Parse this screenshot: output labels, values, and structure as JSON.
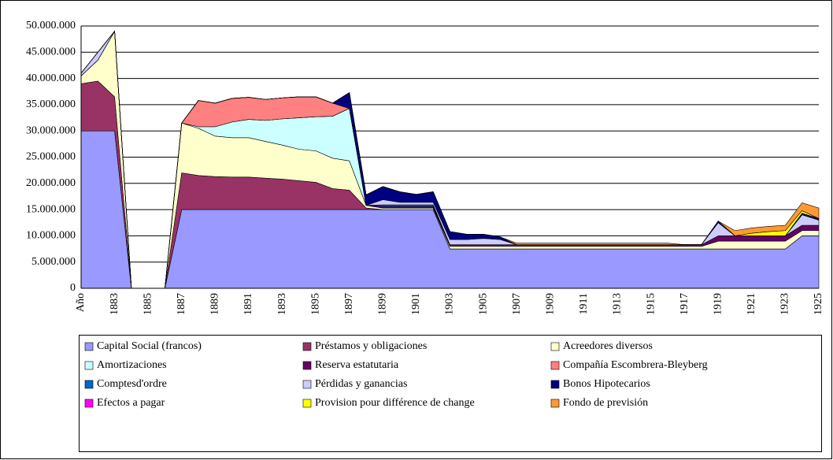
{
  "chart_data": {
    "type": "stacked-area",
    "categories": [
      "Año",
      null,
      "1883",
      null,
      "1885",
      null,
      "1887",
      null,
      "1889",
      null,
      "1891",
      null,
      "1893",
      null,
      "1895",
      null,
      "1897",
      null,
      "1899",
      null,
      "1901",
      null,
      "1903",
      null,
      "1905",
      null,
      "1907",
      null,
      "1909",
      null,
      "1911",
      null,
      "1913",
      null,
      "1915",
      null,
      "1917",
      null,
      "1919",
      null,
      "1921",
      null,
      "1923",
      null,
      "1925"
    ],
    "ylim": [
      0,
      50000000
    ],
    "yticks": [
      0,
      {
        "value": 5000000,
        "label": "5.000.000"
      },
      {
        "value": 10000000,
        "label": "10.000.000"
      },
      {
        "value": 15000000,
        "label": "15.000.000"
      },
      {
        "value": 20000000,
        "label": "20.000.000"
      },
      {
        "value": 25000000,
        "label": "25.000.000"
      },
      {
        "value": 30000000,
        "label": "30.000.000"
      },
      {
        "value": 35000000,
        "label": "35.000.000"
      },
      {
        "value": 40000000,
        "label": "40.000.000"
      },
      {
        "value": 45000000,
        "label": "45.000.000"
      },
      {
        "value": 50000000,
        "label": "50.000.000"
      }
    ],
    "grid": true,
    "legend": "bottom",
    "series": [
      {
        "name": "Capital Social (francos)",
        "color": "#9999ff",
        "values": [
          30000000,
          30000000,
          30000000,
          0,
          0,
          0,
          15000000,
          15000000,
          15000000,
          15000000,
          15000000,
          15000000,
          15000000,
          15000000,
          15000000,
          15000000,
          15000000,
          15000000,
          15000000,
          15000000,
          15000000,
          15000000,
          7500000,
          7500000,
          7500000,
          7500000,
          7500000,
          7500000,
          7500000,
          7500000,
          7500000,
          7500000,
          7500000,
          7500000,
          7500000,
          7500000,
          7500000,
          7500000,
          7500000,
          7500000,
          7500000,
          7500000,
          7500000,
          10000000,
          10000000
        ]
      },
      {
        "name": "Préstamos y obligaciones",
        "color": "#993366",
        "values": [
          9000000,
          9500000,
          6500000,
          0,
          0,
          0,
          7000000,
          6500000,
          6300000,
          6200000,
          6200000,
          6000000,
          5800000,
          5500000,
          5200000,
          4000000,
          3700000,
          300000,
          0,
          0,
          0,
          0,
          0,
          0,
          0,
          0,
          0,
          0,
          0,
          0,
          0,
          0,
          0,
          0,
          0,
          0,
          0,
          0,
          0,
          0,
          0,
          0,
          0,
          0,
          0
        ]
      },
      {
        "name": "Acreedores diversos",
        "color": "#ffffcc",
        "values": [
          1500000,
          4000000,
          12500000,
          0,
          0,
          0,
          9500000,
          9000000,
          7700000,
          7500000,
          7500000,
          7000000,
          6500000,
          6000000,
          6000000,
          5800000,
          5600000,
          500000,
          300000,
          300000,
          300000,
          300000,
          500000,
          500000,
          500000,
          500000,
          500000,
          500000,
          500000,
          500000,
          500000,
          500000,
          500000,
          500000,
          500000,
          500000,
          500000,
          500000,
          1500000,
          1500000,
          1500000,
          1500000,
          1500000,
          1000000,
          1000000
        ]
      },
      {
        "name": "Amortizaciones",
        "color": "#ccffff",
        "values": [
          0,
          0,
          0,
          0,
          0,
          0,
          0,
          300000,
          1800000,
          3000000,
          3500000,
          4000000,
          5000000,
          6000000,
          6500000,
          8000000,
          10000000,
          0,
          0,
          0,
          0,
          0,
          0,
          0,
          0,
          0,
          0,
          0,
          0,
          0,
          0,
          0,
          0,
          0,
          0,
          0,
          0,
          0,
          0,
          0,
          0,
          0,
          0,
          0,
          0
        ]
      },
      {
        "name": "Reserva estatutaria",
        "color": "#660066",
        "values": [
          0,
          0,
          0,
          0,
          0,
          0,
          0,
          0,
          0,
          0,
          0,
          0,
          0,
          0,
          0,
          0,
          0,
          0,
          300000,
          300000,
          300000,
          300000,
          300000,
          300000,
          300000,
          300000,
          300000,
          300000,
          300000,
          300000,
          300000,
          300000,
          300000,
          300000,
          300000,
          300000,
          300000,
          300000,
          1000000,
          1000000,
          1000000,
          1000000,
          1000000,
          1000000,
          1000000
        ]
      },
      {
        "name": "Compañía Escombrera-Bleyberg",
        "color": "#ff8080",
        "values": [
          0,
          0,
          0,
          0,
          0,
          0,
          0,
          5000000,
          4500000,
          4500000,
          4200000,
          4000000,
          4000000,
          4000000,
          3800000,
          2500000,
          0,
          0,
          0,
          0,
          0,
          0,
          0,
          0,
          0,
          0,
          0,
          0,
          0,
          0,
          0,
          0,
          0,
          0,
          0,
          0,
          0,
          0,
          0,
          0,
          0,
          0,
          0,
          0,
          0
        ]
      },
      {
        "name": "Comptesd'ordre",
        "color": "#0066cc",
        "values": [
          0,
          0,
          0,
          0,
          0,
          0,
          0,
          0,
          0,
          0,
          0,
          0,
          0,
          0,
          0,
          0,
          0,
          0,
          300000,
          300000,
          300000,
          300000,
          0,
          0,
          0,
          0,
          0,
          0,
          0,
          0,
          0,
          0,
          0,
          0,
          0,
          0,
          0,
          0,
          0,
          0,
          0,
          0,
          0,
          0,
          0
        ]
      },
      {
        "name": "Pérdidas y ganancias",
        "color": "#ccccff",
        "values": [
          500000,
          1500000,
          0,
          0,
          0,
          0,
          0,
          0,
          0,
          0,
          0,
          0,
          0,
          0,
          0,
          0,
          0,
          0,
          1000000,
          500000,
          500000,
          500000,
          1000000,
          1000000,
          1200000,
          1000000,
          0,
          0,
          0,
          0,
          0,
          0,
          0,
          0,
          0,
          0,
          0,
          0,
          2500000,
          0,
          0,
          0,
          0,
          2000000,
          1000000
        ]
      },
      {
        "name": "Bonos Hipotecarios",
        "color": "#000080",
        "values": [
          0,
          0,
          0,
          0,
          0,
          0,
          0,
          0,
          0,
          0,
          0,
          0,
          0,
          0,
          0,
          0,
          3000000,
          2000000,
          2500000,
          2000000,
          1500000,
          2000000,
          1500000,
          1000000,
          800000,
          500000,
          0,
          0,
          0,
          0,
          0,
          0,
          0,
          0,
          0,
          0,
          0,
          0,
          300000,
          0,
          0,
          0,
          0,
          300000,
          300000
        ]
      },
      {
        "name": "Efectos a pagar",
        "color": "#ff00ff",
        "values": [
          0,
          0,
          0,
          0,
          0,
          0,
          0,
          0,
          0,
          0,
          0,
          0,
          0,
          0,
          0,
          0,
          0,
          0,
          0,
          0,
          0,
          0,
          0,
          0,
          0,
          0,
          0,
          0,
          0,
          0,
          0,
          0,
          0,
          0,
          0,
          0,
          0,
          0,
          0,
          0,
          0,
          0,
          0,
          0,
          0
        ]
      },
      {
        "name": "Provision pour différence de change",
        "color": "#ffff00",
        "values": [
          0,
          0,
          0,
          0,
          0,
          0,
          0,
          0,
          0,
          0,
          0,
          0,
          0,
          0,
          0,
          0,
          0,
          0,
          0,
          0,
          0,
          0,
          0,
          0,
          0,
          0,
          0,
          0,
          0,
          0,
          0,
          0,
          0,
          0,
          0,
          0,
          0,
          0,
          0,
          0,
          500000,
          800000,
          1000000,
          500000,
          0
        ]
      },
      {
        "name": "Fondo de previsión",
        "color": "#ff9933",
        "values": [
          0,
          0,
          0,
          0,
          0,
          0,
          0,
          0,
          0,
          0,
          0,
          0,
          0,
          0,
          0,
          0,
          0,
          0,
          0,
          0,
          0,
          0,
          0,
          0,
          0,
          0,
          300000,
          300000,
          300000,
          300000,
          300000,
          300000,
          300000,
          300000,
          300000,
          300000,
          0,
          0,
          0,
          1000000,
          1000000,
          1000000,
          1000000,
          1500000,
          2000000
        ]
      }
    ]
  }
}
